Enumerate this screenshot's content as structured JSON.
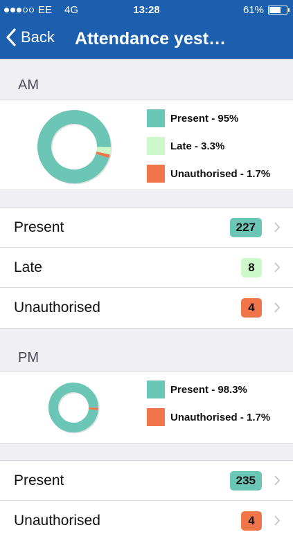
{
  "status_bar": {
    "carrier": "EE",
    "network": "4G",
    "time": "13:28",
    "battery": "61%",
    "battery_level": 0.61
  },
  "nav": {
    "back_label": "Back",
    "title": "Attendance yest…"
  },
  "colors": {
    "nav": "#1c5fae",
    "present": "#6cc6b6",
    "late": "#cdf8ca",
    "unauthorised": "#f0754a"
  },
  "am": {
    "header": "AM",
    "legend": [
      {
        "label": "Present - 95%",
        "color": "#6cc6b6"
      },
      {
        "label": "Late - 3.3%",
        "color": "#cdf8ca"
      },
      {
        "label": "Unauthorised - 1.7%",
        "color": "#f0754a"
      }
    ],
    "rows": [
      {
        "label": "Present",
        "count": "227",
        "color": "#6cc6b6"
      },
      {
        "label": "Late",
        "count": "8",
        "color": "#cdf8ca"
      },
      {
        "label": "Unauthorised",
        "count": "4",
        "color": "#f0754a"
      }
    ]
  },
  "pm": {
    "header": "PM",
    "legend": [
      {
        "label": "Present - 98.3%",
        "color": "#6cc6b6"
      },
      {
        "label": "Unauthorised - 1.7%",
        "color": "#f0754a"
      }
    ],
    "rows": [
      {
        "label": "Present",
        "count": "235",
        "color": "#6cc6b6"
      },
      {
        "label": "Unauthorised",
        "count": "4",
        "color": "#f0754a"
      }
    ]
  },
  "chart_data": [
    {
      "type": "pie",
      "categories": [
        "Present",
        "Late",
        "Unauthorised"
      ],
      "values": [
        95,
        3.3,
        1.7
      ],
      "colors": [
        "#6cc6b6",
        "#cdf8ca",
        "#f0754a"
      ]
    },
    {
      "type": "pie",
      "categories": [
        "Present",
        "Unauthorised"
      ],
      "values": [
        98.3,
        1.7
      ],
      "colors": [
        "#6cc6b6",
        "#f0754a"
      ]
    }
  ]
}
